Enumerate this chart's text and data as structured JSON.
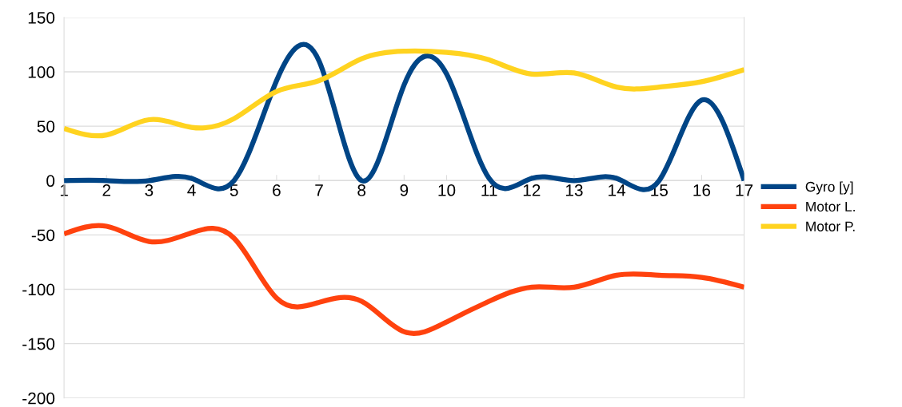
{
  "chart_data": {
    "type": "line",
    "categories": [
      "1",
      "2",
      "3",
      "4",
      "5",
      "6",
      "7",
      "8",
      "9",
      "10",
      "11",
      "12",
      "13",
      "14",
      "15",
      "16",
      "17"
    ],
    "series": [
      {
        "name": "Gyro [y]",
        "color": "#004586",
        "values": [
          0,
          0,
          0,
          2,
          0,
          92,
          110,
          0,
          88,
          98,
          2,
          2,
          0,
          2,
          0,
          74,
          0
        ]
      },
      {
        "name": "Motor L.",
        "color": "#ff420e",
        "values": [
          -49,
          -42,
          -56,
          -48,
          -53,
          -108,
          -112,
          -111,
          -139,
          -130,
          -111,
          -98,
          -98,
          -87,
          -87,
          -89,
          -98
        ]
      },
      {
        "name": "Motor P.",
        "color": "#ffd320",
        "values": [
          48,
          42,
          56,
          49,
          57,
          82,
          92,
          112,
          119,
          118,
          111,
          98,
          99,
          86,
          86,
          91,
          102
        ]
      }
    ],
    "ylim": [
      -200,
      150
    ],
    "yticks": [
      -200,
      -150,
      -100,
      -50,
      0,
      50,
      100,
      150
    ],
    "grid": "y",
    "legend": "right",
    "marker": "none",
    "line_style": "solid"
  }
}
